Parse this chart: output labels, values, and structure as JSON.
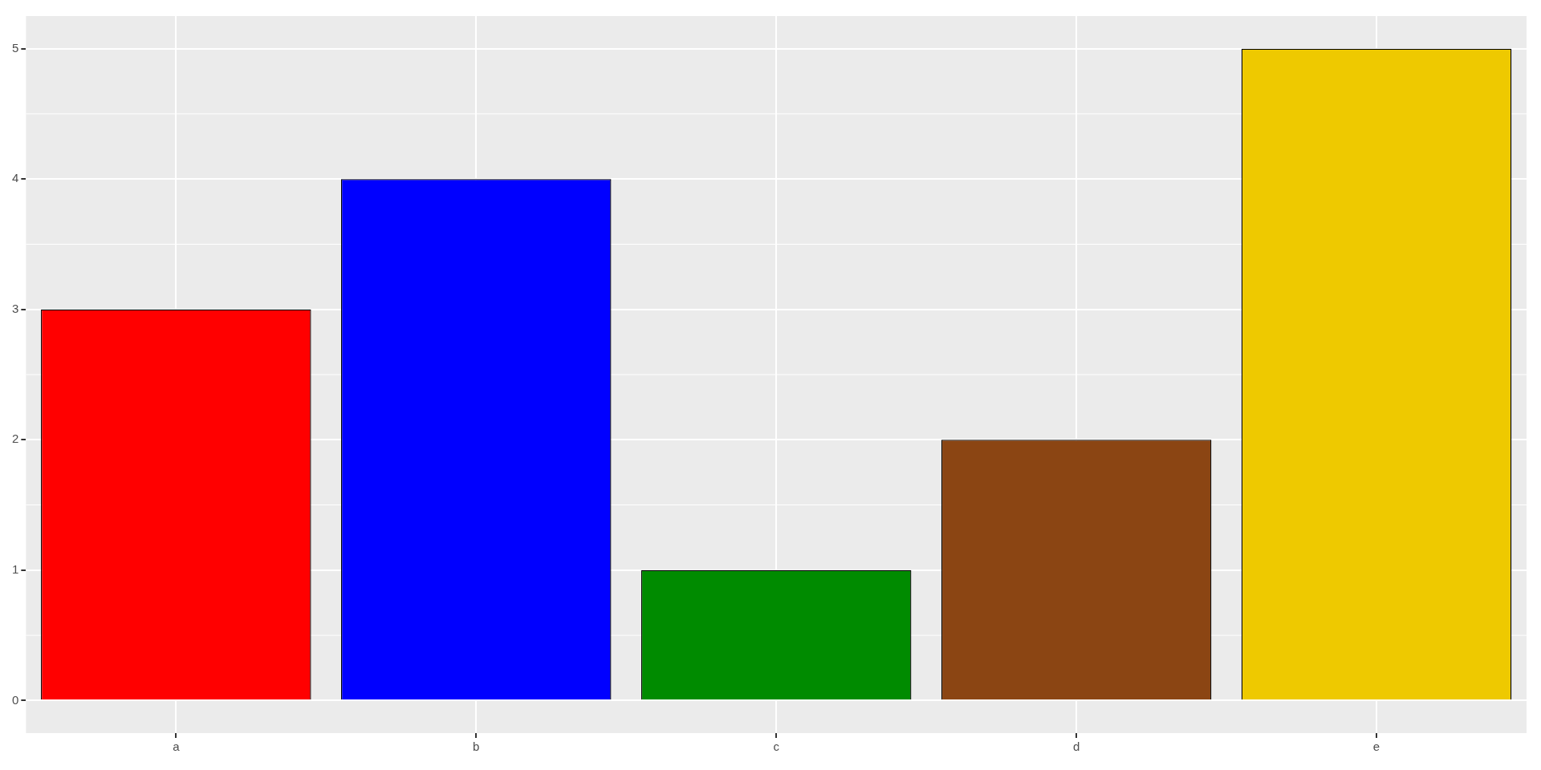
{
  "chart_data": {
    "type": "bar",
    "categories": [
      "a",
      "b",
      "c",
      "d",
      "e"
    ],
    "values": [
      3,
      4,
      1,
      2,
      5
    ],
    "colors": [
      "#ff0000",
      "#0000ff",
      "#008b00",
      "#8b4513",
      "#eec900"
    ],
    "ylim": [
      -0.25,
      5.25
    ],
    "yticks": [
      0,
      1,
      2,
      3,
      4,
      5
    ],
    "grid": true
  }
}
